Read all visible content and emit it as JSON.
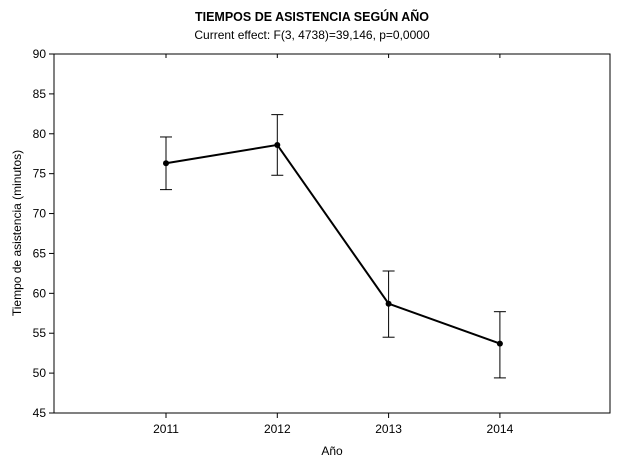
{
  "chart_data": {
    "type": "line",
    "title": "TIEMPOS DE ASISTENCIA SEGÚN AÑO",
    "subtitle": "Current effect: F(3, 4738)=39,146, p=0,0000",
    "xlabel": "Año",
    "ylabel": "Tiempo de asistencia (minutos)",
    "categories": [
      "2011",
      "2012",
      "2013",
      "2014"
    ],
    "values": [
      76.3,
      78.6,
      58.7,
      53.7
    ],
    "error_upper": [
      79.6,
      82.4,
      62.8,
      57.7
    ],
    "error_lower": [
      73.0,
      74.8,
      54.5,
      49.4
    ],
    "ylim": [
      45,
      90
    ],
    "yticks": [
      "45",
      "50",
      "55",
      "60",
      "65",
      "70",
      "75",
      "80",
      "85",
      "90"
    ],
    "grid": false,
    "line_color": "#000000"
  }
}
